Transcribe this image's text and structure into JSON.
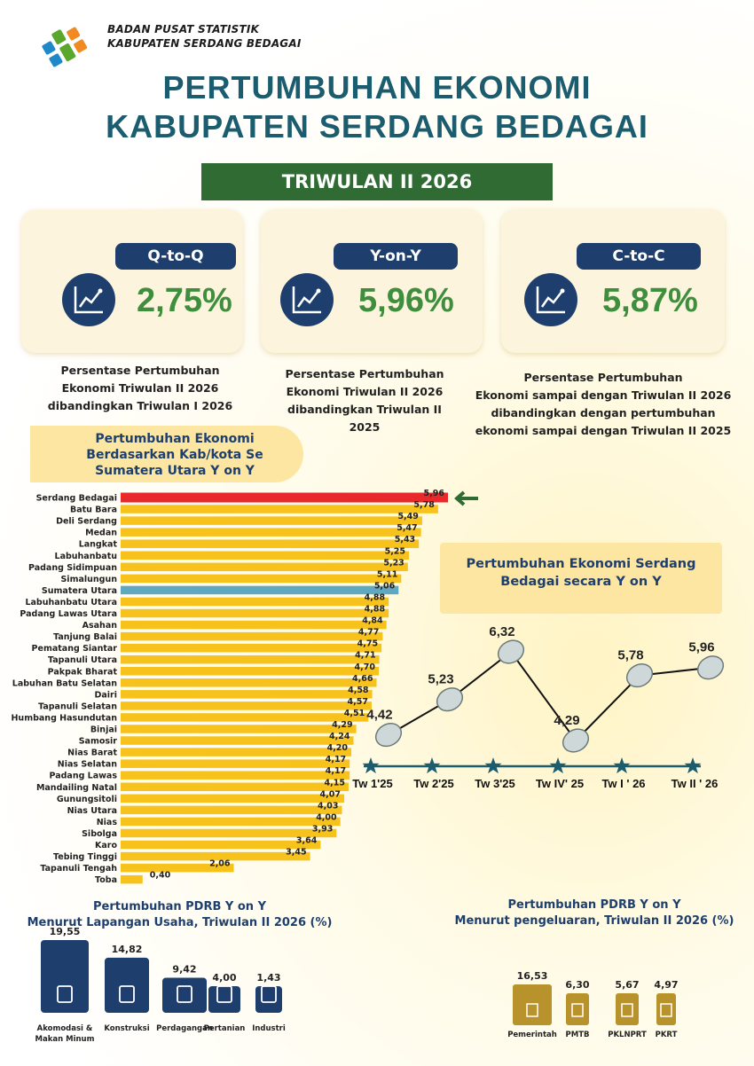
{
  "header": {
    "org_line1": "BADAN PUSAT STATISTIK",
    "org_line2": "KABUPATEN SERDANG BEDAGAI",
    "title_line1": "PERTUMBUHAN EKONOMI",
    "title_line2": "KABUPATEN SERDANG BEDAGAI",
    "period": "TRIWULAN II 2026"
  },
  "cards": [
    {
      "label": "Q-to-Q",
      "value": "2,75%",
      "desc": [
        "Persentase Pertumbuhan",
        "Ekonomi Triwulan II 2026",
        "dibandingkan Triwulan I 2026"
      ]
    },
    {
      "label": "Y-on-Y",
      "value": "5,96%",
      "desc": [
        "Persentase Pertumbuhan",
        "Ekonomi Triwulan II 2026",
        "dibandingkan Triwulan II",
        "2025"
      ]
    },
    {
      "label": "C-to-C",
      "value": "5,87%",
      "desc": [
        "Persentase Pertumbuhan",
        "Ekonomi sampai dengan Triwulan II 2026",
        "dibandingkan dengan pertumbuhan",
        "ekonomi sampai dengan Triwulan II 2025"
      ]
    }
  ],
  "colors": {
    "bar_default": "#f6c21b",
    "bar_highlight": "#e8282b",
    "bar_province": "#5fa8bf",
    "navy": "#1e3f6d",
    "green": "#3e8e3e",
    "teal": "#1b5c6e",
    "gold": "#b8932c"
  },
  "chart_data": [
    {
      "type": "bar",
      "orientation": "horizontal",
      "title": "Pertumbuhan Ekonomi Berdasarkan Kab/kota Se Sumatera Utara  Y on Y",
      "title_lines": [
        "Pertumbuhan Ekonomi",
        "Berdasarkan Kab/kota Se",
        "Sumatera Utara  Y on Y"
      ],
      "categories": [
        "Serdang Bedagai",
        "Batu Bara",
        "Deli Serdang",
        "Medan",
        "Langkat",
        "Labuhanbatu",
        "Padang Sidimpuan",
        "Simalungun",
        "Sumatera Utara",
        "Labuhanbatu Utara",
        "Padang Lawas Utara",
        "Asahan",
        "Tanjung Balai",
        "Pematang Siantar",
        "Tapanuli Utara",
        "Pakpak Bharat",
        "Labuhan Batu Selatan",
        "Dairi",
        "Tapanuli Selatan",
        "Humbang Hasundutan",
        "Binjai",
        "Samosir",
        "Nias Barat",
        "Nias Selatan",
        "Padang Lawas",
        "Mandailing Natal",
        "Gunungsitoli",
        "Nias Utara",
        "Nias",
        "Sibolga",
        "Karo",
        "Tebing Tinggi",
        "Tapanuli Tengah",
        "Toba"
      ],
      "values": [
        5.96,
        5.78,
        5.49,
        5.47,
        5.43,
        5.25,
        5.23,
        5.11,
        5.06,
        4.88,
        4.88,
        4.84,
        4.77,
        4.75,
        4.71,
        4.7,
        4.66,
        4.58,
        4.57,
        4.51,
        4.29,
        4.24,
        4.2,
        4.17,
        4.17,
        4.15,
        4.07,
        4.03,
        4.0,
        3.93,
        3.64,
        3.45,
        2.06,
        0.4
      ],
      "value_labels": [
        "5,96",
        "5,78",
        "5,49",
        "5,47",
        "5,43",
        "5,25",
        "5,23",
        "5,11",
        "5,06",
        "4,88",
        "4,88",
        "4,84",
        "4,77",
        "4,75",
        "4,71",
        "4,70",
        "4,66",
        "4,58",
        "4,57",
        "4,51",
        "4,29",
        "4,24",
        "4,20",
        "4,17",
        "4,17",
        "4,15",
        "4,07",
        "4,03",
        "4,00",
        "3,93",
        "3,64",
        "3,45",
        "2,06",
        "0,40"
      ],
      "highlight": "Serdang Bedagai",
      "province": "Sumatera Utara"
    },
    {
      "type": "line",
      "title": "Pertumbuhan Ekonomi Serdang Bedagai secara Y on Y",
      "title_lines": [
        "Pertumbuhan Ekonomi Serdang",
        "Bedagai secara Y on Y"
      ],
      "categories": [
        "Tw 1'25",
        "Tw 2'25",
        "Tw 3'25",
        "Tw IV' 25",
        "Tw I ' 26",
        "Tw II ' 26"
      ],
      "values": [
        4.42,
        5.23,
        6.32,
        4.29,
        5.78,
        5.96
      ],
      "value_labels": [
        "4,42",
        "5,23",
        "6,32",
        "4,29",
        "5,78",
        "5,96"
      ]
    },
    {
      "type": "bar",
      "title": "Pertumbuhan PDRB Y on Y Menurut Lapangan Usaha, Triwulan II 2026 (%)",
      "title_lines": [
        "Pertumbuhan PDRB Y on Y",
        "Menurut Lapangan Usaha, Triwulan II 2026 (%)"
      ],
      "categories": [
        "Akomodasi & Makan Minum",
        "Konstruksi",
        "Perdagangan",
        "Pertanian",
        "Industri"
      ],
      "category_lines": [
        [
          "Akomodasi &",
          "Makan Minum"
        ],
        [
          "Konstruksi"
        ],
        [
          "Perdagangan"
        ],
        [
          "Pertanian"
        ],
        [
          "Industri"
        ]
      ],
      "values": [
        19.55,
        14.82,
        9.42,
        4.0,
        1.43
      ],
      "value_labels": [
        "19,55",
        "14,82",
        "9,42",
        "4,00",
        "1,43"
      ],
      "icons": [
        "food-icon",
        "construction-icon",
        "trade-icon",
        "agriculture-icon",
        "industry-icon"
      ]
    },
    {
      "type": "bar",
      "title": "Pertumbuhan PDRB Y on Y Menurut pengeluaran, Triwulan II 2026 (%)",
      "title_lines": [
        "Pertumbuhan PDRB Y on Y",
        "Menurut pengeluaran, Triwulan II 2026 (%)"
      ],
      "categories": [
        "Pemerintah",
        "PMTB",
        "PKLNPRT",
        "PKRT"
      ],
      "values": [
        16.53,
        6.3,
        5.67,
        4.97
      ],
      "value_labels": [
        "16,53",
        "6,30",
        "5,67",
        "4,97"
      ],
      "icons": [
        "government-icon",
        "investment-icon",
        "mosque-icon",
        "household-icon"
      ]
    }
  ]
}
